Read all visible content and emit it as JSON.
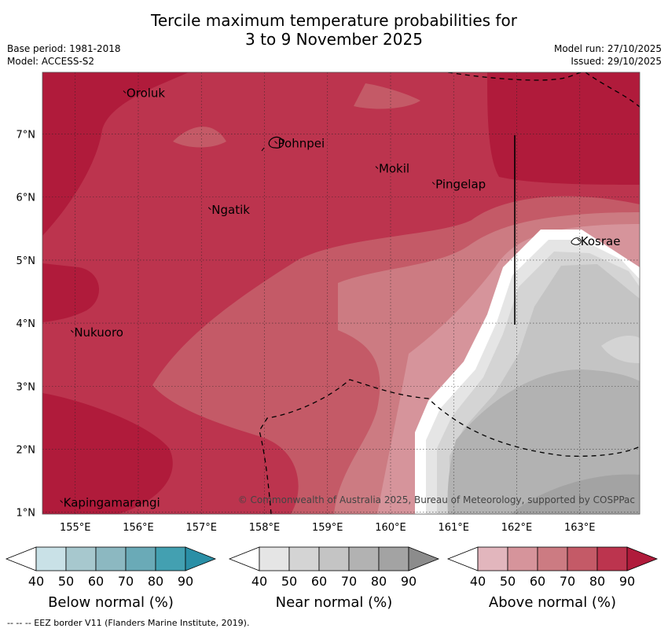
{
  "title": {
    "line1": "Tercile maximum temperature probabilities for",
    "line2": "3 to 9 November 2025"
  },
  "meta_left": {
    "base_period": "Base period: 1981-2018",
    "model": "Model: ACCESS-S2"
  },
  "meta_right": {
    "model_run": "Model run: 27/10/2025",
    "issued": "Issued: 29/10/2025"
  },
  "map": {
    "lon_labels": [
      "155°E",
      "156°E",
      "157°E",
      "158°E",
      "159°E",
      "160°E",
      "161°E",
      "162°E",
      "163°E"
    ],
    "lat_labels": [
      "1°N",
      "2°N",
      "3°N",
      "4°N",
      "5°N",
      "6°N",
      "7°N"
    ],
    "places": [
      {
        "name": "Oroluk",
        "lon": 155.8,
        "lat": 7.65
      },
      {
        "name": "Pohnpei",
        "lon": 158.2,
        "lat": 6.85
      },
      {
        "name": "Mokil",
        "lon": 159.8,
        "lat": 6.45
      },
      {
        "name": "Pingelap",
        "lon": 160.7,
        "lat": 6.2
      },
      {
        "name": "Ngatik",
        "lon": 157.15,
        "lat": 5.8
      },
      {
        "name": "Kosrae",
        "lon": 163.0,
        "lat": 5.3
      },
      {
        "name": "Nukuoro",
        "lon": 154.97,
        "lat": 3.85
      },
      {
        "name": "Kapingamarangi",
        "lon": 154.8,
        "lat": 1.15
      }
    ],
    "copyright": "© Commonwealth of Australia 2025, Bureau of Meteorology, supported by COSPPac"
  },
  "legend": {
    "ticks": [
      "40",
      "50",
      "60",
      "70",
      "80",
      "90"
    ],
    "below": {
      "label": "Below normal (%)",
      "colors": [
        "#ffffff",
        "#c9e1e7",
        "#a7c8ce",
        "#8cb8c1",
        "#6aaab7",
        "#43a0b1",
        "#2a8fa6"
      ]
    },
    "near": {
      "label": "Near normal (%)",
      "colors": [
        "#ffffff",
        "#e5e5e5",
        "#d4d4d4",
        "#c4c4c4",
        "#b2b2b2",
        "#a3a3a3",
        "#8c8c8c"
      ]
    },
    "above": {
      "label": "Above normal (%)",
      "colors": [
        "#ffffff",
        "#e2b6bd",
        "#d6949b",
        "#cc7b82",
        "#c45a67",
        "#bc344e",
        "#b01b3b"
      ]
    }
  },
  "footnote": "--  --  -- EEZ border V11 (Flanders Marine Institute, 2019)."
}
